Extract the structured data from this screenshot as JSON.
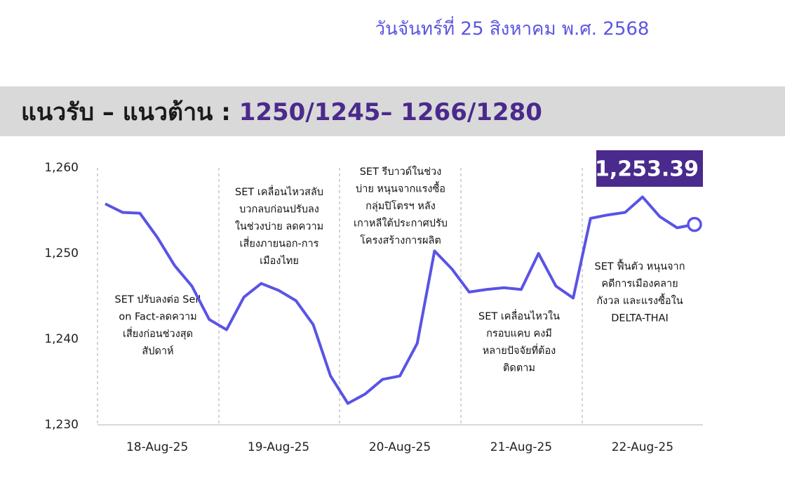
{
  "chart_data": {
    "type": "line",
    "date": "วันจันทร์ที่ 25 สิงหาคม พ.ศ. 2568",
    "title": "แนวรับ – แนวต้าน : ",
    "title_levels": "1250/1245– 1266/1280",
    "categories": [
      null,
      null,
      null,
      "18-Aug-25",
      null,
      null,
      null,
      null,
      null,
      null,
      "19-Aug-25",
      null,
      null,
      null,
      null,
      null,
      null,
      "20-Aug-25",
      null,
      null,
      null,
      null,
      null,
      null,
      "21-Aug-25",
      null,
      null,
      null,
      null,
      null,
      null,
      "22-Aug-25",
      null,
      null,
      null
    ],
    "values": [
      1255.8,
      1254.8,
      1254.7,
      1251.9,
      1248.6,
      1246.2,
      1242.3,
      1241.1,
      1244.9,
      1246.5,
      1245.7,
      1244.5,
      1241.7,
      1235.7,
      1232.5,
      1233.6,
      1235.3,
      1235.7,
      1239.5,
      1250.3,
      1248.2,
      1245.5,
      1245.8,
      1246.0,
      1245.8,
      1250.0,
      1246.2,
      1244.8,
      1254.1,
      1254.5,
      1254.8,
      1256.6,
      1254.3,
      1253.0,
      1253.39
    ],
    "value_labels": [
      null,
      null,
      null,
      null,
      null,
      null,
      null,
      null,
      null,
      null,
      null,
      null,
      null,
      null,
      null,
      null,
      null,
      null,
      null,
      null,
      null,
      null,
      null,
      null,
      null,
      null,
      null,
      null,
      null,
      null,
      null,
      null,
      null,
      null,
      "1,253.39"
    ],
    "color": "#5a53e6",
    "ylim": [
      1230,
      1260
    ],
    "yticks": [
      {
        "value": 1230,
        "label": "1,230"
      },
      {
        "value": 1240,
        "label": "1,240"
      },
      {
        "value": 1250,
        "label": "1,250"
      },
      {
        "value": 1260,
        "label": "1,260"
      }
    ],
    "annotations": [
      [
        "SET ปรับลงต่อ Sell",
        "on Fact-ลดความ",
        "เสี่ยงก่อนช่วงสุด",
        "สัปดาห์"
      ],
      [
        "SET เคลื่อนไหวสลับ",
        "บวกลบก่อนปรับลง",
        "ในช่วงบ่าย ลดความ",
        "เสี่ยงภายนอก-การ",
        "เมืองไทย"
      ],
      [
        "SET รีบาวด์ในช่วง",
        "บ่าย หนุนจากแรงซื้อ",
        "กลุ่มปิโตรฯ หลัง",
        "เกาหลีใต้ประกาศปรับ",
        "โครงสร้างการผลิต"
      ],
      [
        "SET เคลื่อนไหวใน",
        "กรอบแคบ คงมี",
        "หลายปัจจัยที่ต้อง",
        "ติดตาม"
      ],
      [
        "SET ฟื้นตัว หนุนจาก",
        "คดีการเมืองคลาย",
        "กังวล และแรงซื้อใน",
        "DELTA-THAI"
      ]
    ]
  }
}
